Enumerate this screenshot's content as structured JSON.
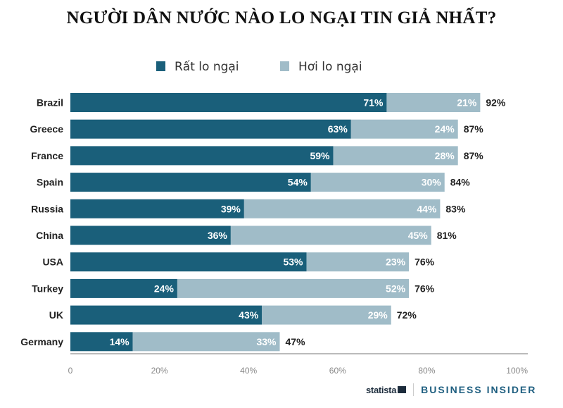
{
  "chart_data": {
    "type": "bar",
    "orientation": "horizontal",
    "stacked": true,
    "title": "NGƯỜI DÂN NƯỚC NÀO LO NGẠI TIN GIẢ NHẤT?",
    "categories": [
      "Brazil",
      "Greece",
      "France",
      "Spain",
      "Russia",
      "China",
      "USA",
      "Turkey",
      "UK",
      "Germany"
    ],
    "series": [
      {
        "name": "Rất lo ngại",
        "color": "#1a5f7a",
        "values": [
          71,
          63,
          59,
          54,
          39,
          36,
          53,
          24,
          43,
          14
        ]
      },
      {
        "name": "Hơi lo ngại",
        "color": "#a0bcc8",
        "values": [
          21,
          24,
          28,
          30,
          44,
          45,
          23,
          52,
          29,
          33
        ]
      }
    ],
    "totals": [
      92,
      87,
      87,
      84,
      83,
      81,
      76,
      76,
      72,
      47
    ],
    "xlim": [
      0,
      100
    ],
    "xticks": [
      "0",
      "20%",
      "40%",
      "60%",
      "80%",
      "100%"
    ],
    "legend": "top",
    "grid": false
  },
  "footer": {
    "source": "statista",
    "publisher": "BUSINESS INSIDER"
  }
}
